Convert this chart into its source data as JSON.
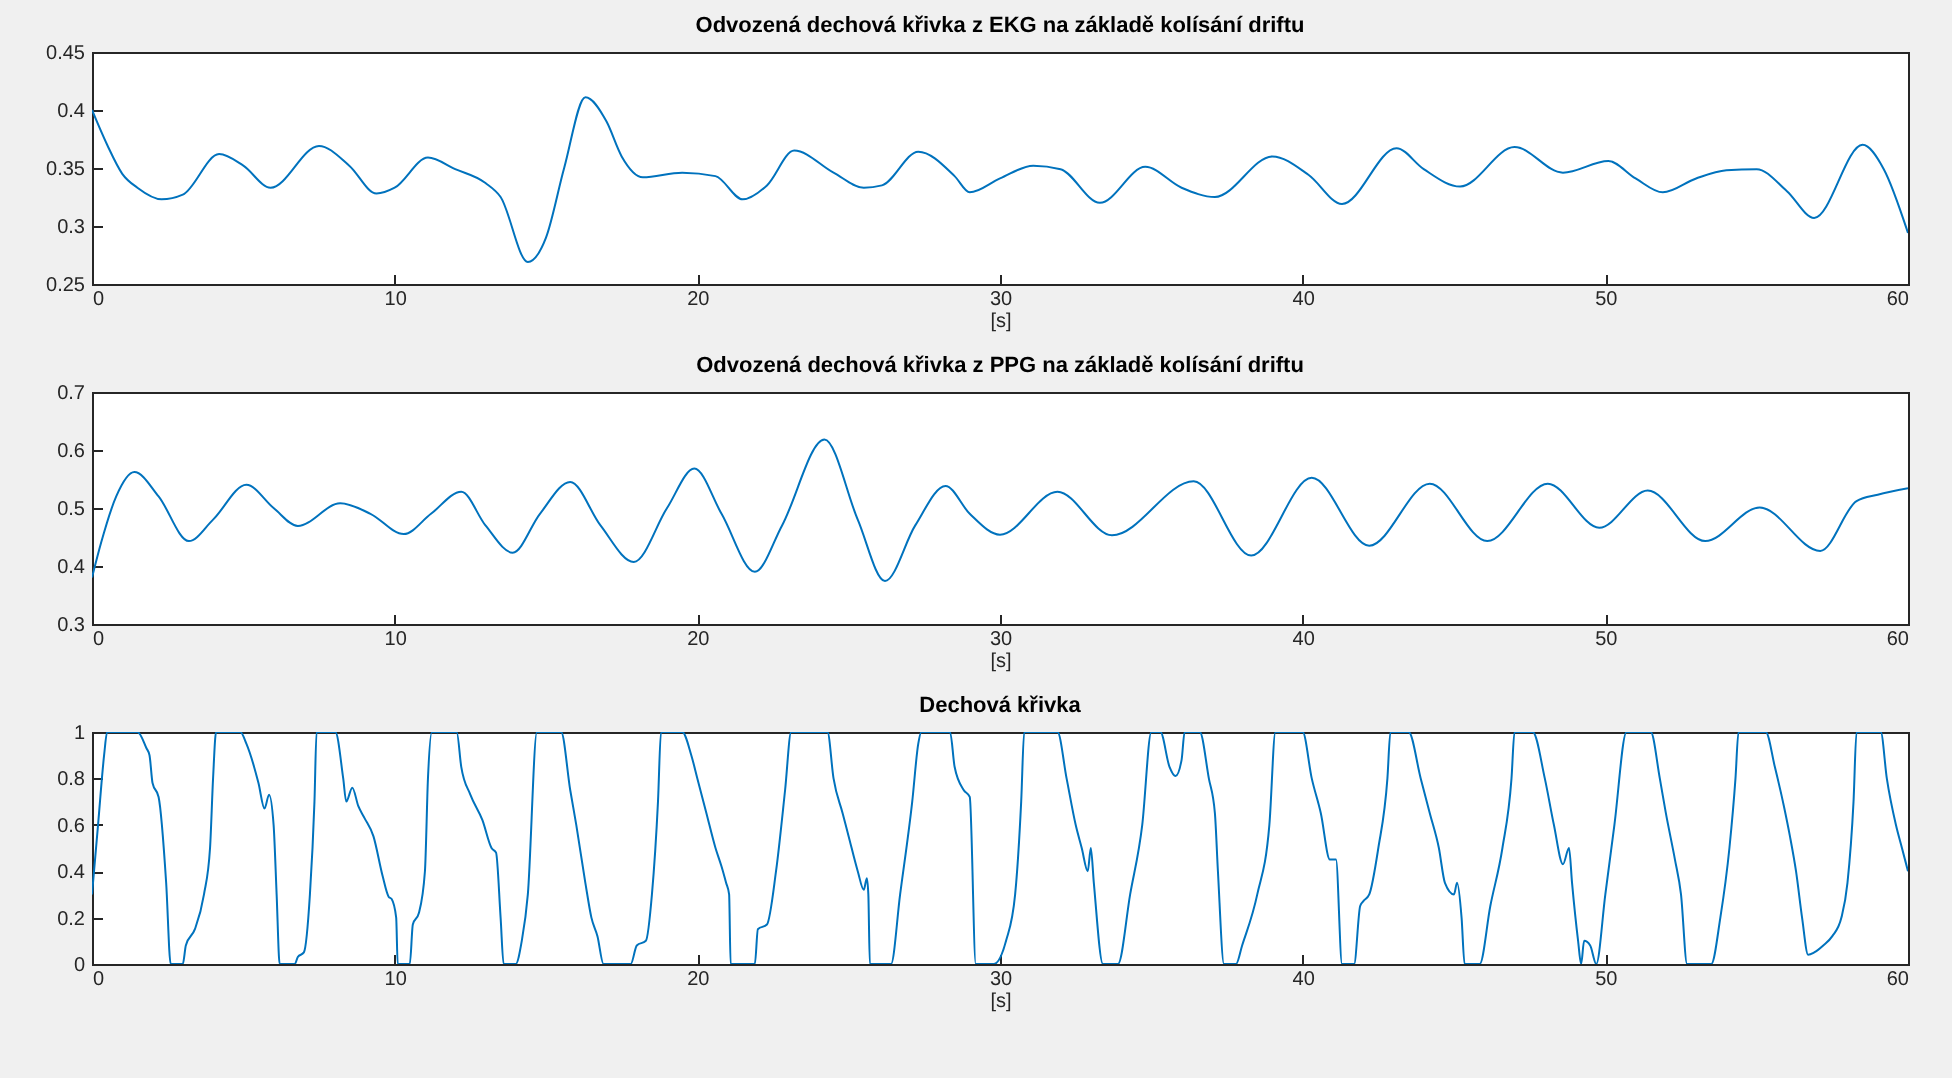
{
  "chart_data": [
    {
      "type": "line",
      "title": "Odvozená dechová křivka z EKG na základě kolísání driftu",
      "xlabel": "[s]",
      "color": "#0072bd",
      "xlim": [
        0,
        60
      ],
      "xticks": [
        0,
        10,
        20,
        30,
        40,
        50,
        60
      ],
      "ylim": [
        0.25,
        0.45
      ],
      "yticks": [
        0.25,
        0.3,
        0.35,
        0.4,
        0.45
      ],
      "x": [
        0,
        0.5,
        1,
        1.5,
        2.3,
        3,
        4.2,
        5,
        5.9,
        7.5,
        8.5,
        9.4,
        10,
        11.1,
        12,
        13,
        13.5,
        14.4,
        15,
        15.6,
        16.3,
        17,
        17.5,
        18.2,
        19.5,
        20.6,
        21.5,
        22.3,
        23.2,
        24.5,
        25.5,
        26.1,
        27.3,
        28.5,
        29,
        30,
        31.1,
        32,
        33.3,
        34.8,
        36,
        37.1,
        39,
        40.2,
        41.3,
        43.1,
        44,
        45.2,
        47,
        48.6,
        50.1,
        51,
        51.9,
        53,
        54,
        55,
        56,
        56.9,
        58.5,
        59.2,
        60
      ],
      "values": [
        0.4,
        0.37,
        0.345,
        0.333,
        0.323,
        0.327,
        0.362,
        0.352,
        0.333,
        0.369,
        0.352,
        0.328,
        0.333,
        0.359,
        0.349,
        0.337,
        0.325,
        0.269,
        0.29,
        0.35,
        0.411,
        0.39,
        0.36,
        0.342,
        0.346,
        0.343,
        0.323,
        0.335,
        0.365,
        0.346,
        0.333,
        0.335,
        0.364,
        0.343,
        0.329,
        0.341,
        0.352,
        0.349,
        0.32,
        0.351,
        0.333,
        0.325,
        0.36,
        0.344,
        0.319,
        0.367,
        0.349,
        0.334,
        0.368,
        0.346,
        0.356,
        0.341,
        0.329,
        0.341,
        0.348,
        0.349,
        0.33,
        0.307,
        0.37,
        0.349,
        0.294
      ]
    },
    {
      "type": "line",
      "title": "Odvozená dechová křivka z PPG na základě kolísání driftu",
      "xlabel": "[s]",
      "color": "#0072bd",
      "xlim": [
        0,
        60
      ],
      "xticks": [
        0,
        10,
        20,
        30,
        40,
        50,
        60
      ],
      "ylim": [
        0.3,
        0.7
      ],
      "yticks": [
        0.3,
        0.4,
        0.5,
        0.6,
        0.7
      ],
      "x": [
        0,
        0.3,
        0.8,
        1.4,
        2.2,
        3.2,
        4,
        5.1,
        6,
        6.8,
        8.2,
        9.2,
        10.3,
        11.2,
        12.2,
        13,
        13.9,
        14.8,
        15.8,
        16.8,
        17.9,
        19,
        19.9,
        20.8,
        21.9,
        22.8,
        24.2,
        25.3,
        26.2,
        27.2,
        28.2,
        29,
        30,
        31.9,
        33.7,
        36.4,
        38.3,
        40.3,
        42.2,
        44.2,
        46.1,
        48.1,
        49.8,
        51.4,
        53.3,
        55.1,
        57.1,
        58.3,
        59,
        60
      ],
      "values": [
        0.38,
        0.44,
        0.52,
        0.562,
        0.52,
        0.443,
        0.48,
        0.54,
        0.5,
        0.469,
        0.508,
        0.49,
        0.455,
        0.49,
        0.528,
        0.47,
        0.423,
        0.49,
        0.545,
        0.47,
        0.407,
        0.5,
        0.568,
        0.49,
        0.39,
        0.47,
        0.618,
        0.48,
        0.374,
        0.47,
        0.538,
        0.49,
        0.454,
        0.528,
        0.453,
        0.546,
        0.418,
        0.552,
        0.435,
        0.542,
        0.443,
        0.542,
        0.466,
        0.53,
        0.443,
        0.501,
        0.426,
        0.512,
        0.523,
        0.534
      ]
    },
    {
      "type": "line",
      "title": "Dechová křivka",
      "xlabel": "[s]",
      "color": "#0072bd",
      "xlim": [
        0,
        60
      ],
      "xticks": [
        0,
        10,
        20,
        30,
        40,
        50,
        60
      ],
      "ylim": [
        0,
        1
      ],
      "yticks": [
        0,
        0.2,
        0.4,
        0.6,
        0.8,
        1
      ],
      "x": [
        0,
        0.2,
        0.4,
        0.5,
        1.5,
        1.8,
        1.9,
        2.0,
        2.2,
        2.45,
        2.6,
        3.0,
        3.1,
        3.4,
        3.7,
        3.9,
        4.0,
        4.1,
        4.9,
        5.1,
        5.5,
        5.7,
        5.85,
        6.0,
        6.1,
        6.2,
        6.7,
        6.8,
        7.0,
        7.2,
        7.35,
        7.42,
        8.04,
        8.3,
        8.4,
        8.6,
        8.8,
        9.0,
        9.3,
        9.6,
        9.8,
        9.9,
        10.05,
        10.1,
        10.5,
        10.6,
        10.8,
        11.0,
        11.1,
        11.23,
        12.05,
        12.2,
        12.5,
        12.9,
        13.2,
        13.35,
        13.5,
        13.6,
        14.0,
        14.2,
        14.4,
        14.7,
        15.5,
        15.8,
        16.0,
        16.3,
        16.5,
        16.7,
        16.9,
        17.8,
        18.0,
        18.3,
        18.5,
        18.7,
        18.8,
        19.5,
        19.8,
        20.0,
        20.3,
        20.6,
        20.8,
        20.95,
        21.05,
        21.1,
        21.9,
        22.0,
        22.3,
        22.6,
        22.9,
        23.1,
        24.3,
        24.5,
        24.8,
        25.0,
        25.3,
        25.5,
        25.6,
        25.65,
        25.7,
        26.4,
        26.7,
        27.1,
        27.3,
        27.4,
        28.35,
        28.5,
        28.8,
        29.0,
        29.2,
        29.8,
        30.2,
        30.5,
        30.7,
        30.8,
        31.9,
        32.2,
        32.5,
        32.7,
        32.9,
        33.0,
        33.1,
        33.4,
        33.9,
        34.3,
        34.7,
        35.0,
        35.3,
        35.6,
        35.8,
        36.0,
        36.1,
        36.6,
        36.9,
        37.1,
        37.2,
        37.4,
        37.8,
        38.0,
        38.5,
        38.9,
        39.1,
        40.0,
        40.3,
        40.6,
        40.9,
        41.1,
        41.3,
        41.7,
        41.9,
        42.0,
        42.2,
        42.5,
        42.8,
        42.9,
        43.5,
        43.9,
        44.2,
        44.5,
        44.7,
        45.0,
        45.1,
        45.25,
        45.35,
        45.85,
        46.2,
        46.6,
        46.9,
        47.0,
        47.6,
        48.0,
        48.3,
        48.6,
        48.8,
        48.9,
        49.1,
        49.2,
        49.3,
        49.5,
        49.7,
        50.0,
        50.3,
        50.7,
        51.5,
        51.8,
        52.0,
        52.3,
        52.5,
        52.7,
        53.5,
        53.8,
        54.1,
        54.3,
        54.4,
        55.3,
        55.6,
        55.9,
        56.1,
        56.3,
        56.5,
        56.7,
        56.9,
        57.2,
        57.5,
        57.8,
        58.0,
        58.2,
        58.3,
        59.1,
        59.3,
        59.6,
        59.8,
        60
      ],
      "values": [
        0.3,
        0.6,
        0.9,
        1,
        1,
        0.93,
        0.9,
        0.78,
        0.72,
        0.35,
        0,
        0,
        0.08,
        0.15,
        0.3,
        0.5,
        0.8,
        1,
        1,
        0.95,
        0.78,
        0.67,
        0.73,
        0.6,
        0.3,
        0,
        0,
        0.03,
        0.05,
        0.3,
        0.7,
        1,
        1,
        0.8,
        0.7,
        0.76,
        0.68,
        0.63,
        0.55,
        0.38,
        0.29,
        0.28,
        0.2,
        0,
        0,
        0.17,
        0.22,
        0.4,
        0.8,
        1,
        1,
        0.85,
        0.73,
        0.62,
        0.5,
        0.48,
        0.2,
        0,
        0,
        0.1,
        0.3,
        1,
        1,
        0.75,
        0.6,
        0.35,
        0.2,
        0.12,
        0,
        0,
        0.08,
        0.1,
        0.3,
        0.7,
        1,
        1,
        0.9,
        0.8,
        0.65,
        0.5,
        0.42,
        0.35,
        0.3,
        0,
        0,
        0.15,
        0.17,
        0.4,
        0.75,
        1,
        1,
        0.8,
        0.65,
        0.55,
        0.4,
        0.32,
        0.37,
        0.3,
        0,
        0,
        0.3,
        0.7,
        0.95,
        1,
        1,
        0.85,
        0.75,
        0.72,
        0,
        0,
        0.1,
        0.3,
        0.7,
        1,
        1,
        0.8,
        0.6,
        0.5,
        0.4,
        0.5,
        0.35,
        0,
        0,
        0.3,
        0.6,
        1,
        1,
        0.85,
        0.81,
        0.88,
        1,
        1,
        0.8,
        0.65,
        0.4,
        0,
        0,
        0.08,
        0.3,
        0.6,
        1,
        1,
        0.8,
        0.65,
        0.45,
        0.45,
        0,
        0,
        0.25,
        0.27,
        0.3,
        0.5,
        0.8,
        1,
        1,
        0.8,
        0.65,
        0.5,
        0.35,
        0.3,
        0.35,
        0.2,
        0,
        0,
        0.25,
        0.5,
        0.8,
        1,
        1,
        0.8,
        0.6,
        0.43,
        0.5,
        0.35,
        0.1,
        0,
        0.1,
        0.08,
        0,
        0.3,
        0.6,
        1,
        1,
        0.8,
        0.65,
        0.45,
        0.3,
        0,
        0,
        0.2,
        0.5,
        0.8,
        1,
        1,
        0.85,
        0.68,
        0.55,
        0.4,
        0.2,
        0.04,
        0.05,
        0.08,
        0.12,
        0.2,
        0.35,
        0.7,
        1,
        1,
        0.8,
        0.6,
        0.5,
        0.4
      ]
    }
  ]
}
